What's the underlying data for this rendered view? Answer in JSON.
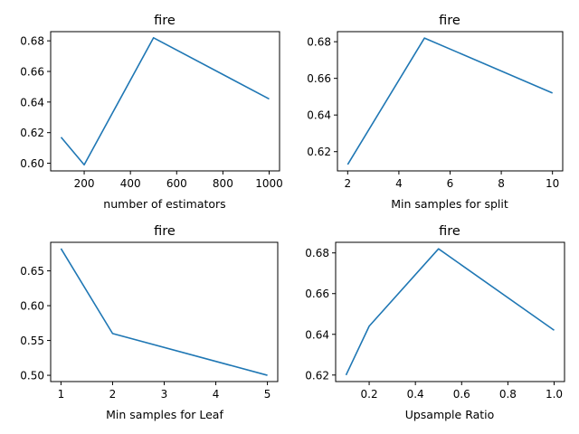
{
  "chart_data": [
    {
      "type": "line",
      "title": "fire",
      "xlabel": "number of estimators",
      "ylabel": "",
      "x": [
        100,
        200,
        500,
        1000
      ],
      "y": [
        0.617,
        0.599,
        0.682,
        0.642
      ],
      "xlim": [
        55,
        1045
      ],
      "ylim": [
        0.595,
        0.686
      ],
      "xticks": [
        200,
        400,
        600,
        800,
        1000
      ],
      "xtick_labels": [
        "200",
        "400",
        "600",
        "800",
        "1000"
      ],
      "yticks": [
        0.6,
        0.62,
        0.64,
        0.66,
        0.68
      ],
      "ytick_labels": [
        "0.60",
        "0.62",
        "0.64",
        "0.66",
        "0.68"
      ],
      "grid": false,
      "color": "#1f77b4"
    },
    {
      "type": "line",
      "title": "fire",
      "xlabel": "Min samples for split",
      "ylabel": "",
      "x": [
        2,
        5,
        10
      ],
      "y": [
        0.613,
        0.682,
        0.652
      ],
      "xlim": [
        1.6,
        10.4
      ],
      "ylim": [
        0.6095,
        0.6855
      ],
      "xticks": [
        2,
        4,
        6,
        8,
        10
      ],
      "xtick_labels": [
        "2",
        "4",
        "6",
        "8",
        "10"
      ],
      "yticks": [
        0.62,
        0.64,
        0.66,
        0.68
      ],
      "ytick_labels": [
        "0.62",
        "0.64",
        "0.66",
        "0.68"
      ],
      "grid": false,
      "color": "#1f77b4"
    },
    {
      "type": "line",
      "title": "fire",
      "xlabel": "Min samples for Leaf",
      "ylabel": "",
      "x": [
        1,
        2,
        5
      ],
      "y": [
        0.682,
        0.56,
        0.5
      ],
      "xlim": [
        0.8,
        5.2
      ],
      "ylim": [
        0.491,
        0.691
      ],
      "xticks": [
        1,
        2,
        3,
        4,
        5
      ],
      "xtick_labels": [
        "1",
        "2",
        "3",
        "4",
        "5"
      ],
      "yticks": [
        0.5,
        0.55,
        0.6,
        0.65
      ],
      "ytick_labels": [
        "0.50",
        "0.55",
        "0.60",
        "0.65"
      ],
      "grid": false,
      "color": "#1f77b4"
    },
    {
      "type": "line",
      "title": "fire",
      "xlabel": "Upsample Ratio",
      "ylabel": "",
      "x": [
        0.1,
        0.2,
        0.5,
        1.0
      ],
      "y": [
        0.62,
        0.644,
        0.682,
        0.642
      ],
      "xlim": [
        0.055,
        1.045
      ],
      "ylim": [
        0.6168,
        0.6852
      ],
      "xticks": [
        0.2,
        0.4,
        0.6,
        0.8,
        1.0
      ],
      "xtick_labels": [
        "0.2",
        "0.4",
        "0.6",
        "0.8",
        "1.0"
      ],
      "yticks": [
        0.62,
        0.64,
        0.66,
        0.68
      ],
      "ytick_labels": [
        "0.62",
        "0.64",
        "0.66",
        "0.68"
      ],
      "grid": false,
      "color": "#1f77b4"
    }
  ]
}
